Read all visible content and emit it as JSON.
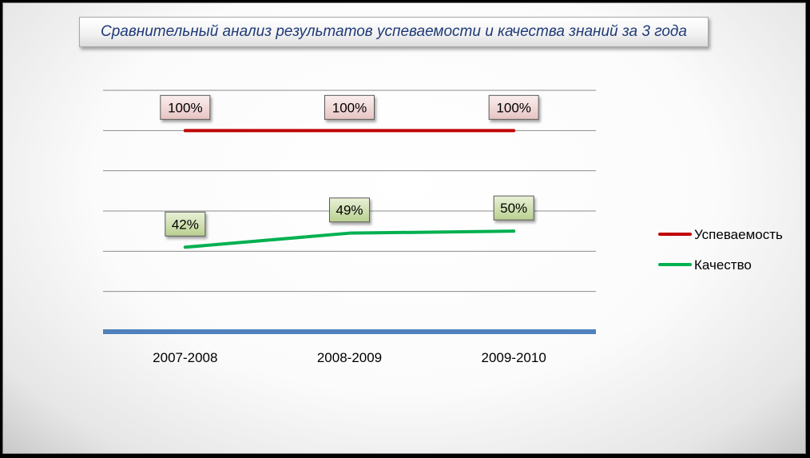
{
  "chart_data": {
    "type": "line",
    "title": "Сравнительный анализ результатов  успеваемости и качества знаний за 3 года",
    "categories": [
      "2007-2008",
      "2008-2009",
      "2009-2010"
    ],
    "series": [
      {
        "name": "Успеваемость",
        "values": [
          100,
          100,
          100
        ],
        "color": "#c00000",
        "labels": [
          "100%",
          "100%",
          "100%"
        ],
        "label_fill": "#f2dcdb"
      },
      {
        "name": "Качество",
        "values": [
          42,
          49,
          50
        ],
        "color": "#00b050",
        "labels": [
          "42%",
          "49%",
          "50%"
        ],
        "label_fill": "#d7e4bc"
      }
    ],
    "ylim": [
      0,
      120
    ],
    "grid": true,
    "legend": "right",
    "axis_color": "#4f81bd"
  }
}
